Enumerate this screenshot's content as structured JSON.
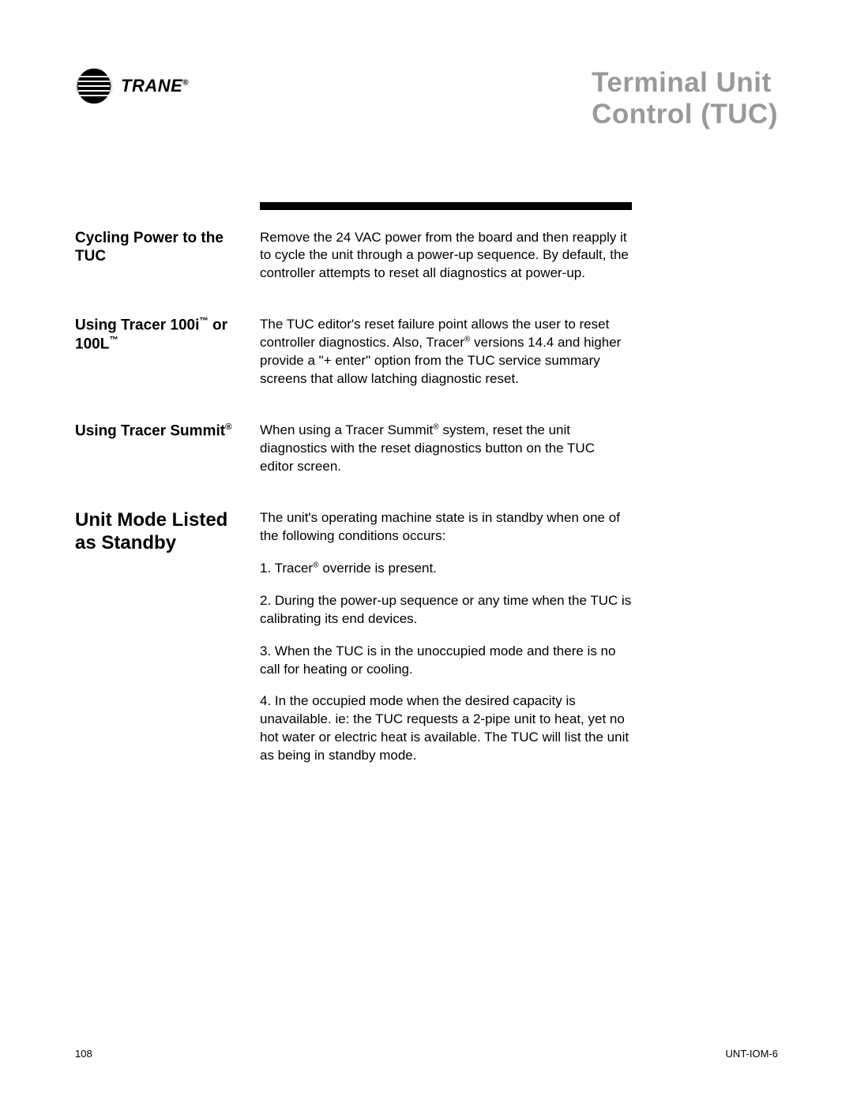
{
  "brand": "TRANE",
  "brand_sup": "®",
  "title_line1": "Terminal Unit",
  "title_line2": "Control (TUC)",
  "colors": {
    "title_gray": "#989998",
    "text_black": "#000000",
    "background": "#ffffff"
  },
  "sections": [
    {
      "label_html": "Cycling Power to the TUC",
      "body": [
        "Remove the 24 VAC power from the board and then reapply it to cycle the unit through a power-up sequence. By default, the controller attempts to reset all diagnostics at power-up."
      ]
    },
    {
      "label_html": "Using Tracer 100i<sup class='sym'>™</sup> or 100L<sup class='sym'>™</sup>",
      "body": [
        "The TUC editor's reset failure point allows the user to reset controller diagnostics. Also, Tracer<sup class='sym'>®</sup> versions 14.4 and higher provide a \"+ enter\" option from the TUC service summary screens that allow latching diagnostic reset."
      ]
    },
    {
      "label_html": "Using Tracer Summit<sup class='sym'>®</sup>",
      "body": [
        "When using a Tracer Summit<sup class='sym'>®</sup> system, reset the unit diagnostics with the reset diagnostics button on the TUC editor screen."
      ]
    },
    {
      "label_html": "Unit Mode Listed as Standby",
      "label_large": true,
      "body": [
        "The unit's operating machine state is in standby when one of the following conditions occurs:",
        "1. Tracer<sup class='sym'>®</sup> override is present.",
        "2. During the power-up sequence or any time when the TUC is calibrating its end devices.",
        "3. When the TUC is in the unoccupied mode and there is no call for heating or cooling.",
        "4. In the occupied mode when the desired capacity is unavailable. ie: the TUC requests a 2-pipe unit to heat, yet no hot water or electric heat is available. The TUC will list the unit as being in standby mode."
      ]
    }
  ],
  "footer": {
    "page_number": "108",
    "doc_id": "UNT-IOM-6"
  }
}
